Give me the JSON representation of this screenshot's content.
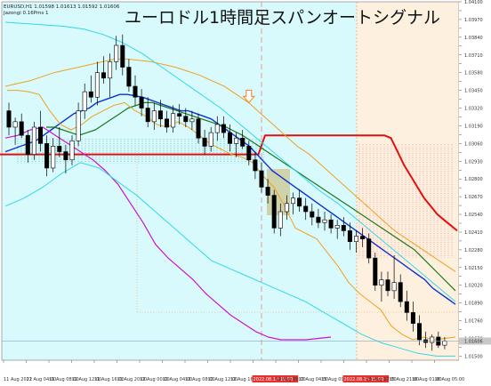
{
  "header": {
    "symbol_line": "EURUSD,H1 1.01598 1.01613 1.01592 1.01606",
    "indicator_line": "Jazongi 0.16Pms 1",
    "title": "ユーロドル1時間足スパンオートシグナル"
  },
  "price_label": "1.01606",
  "colors": {
    "panel_bg": "#d8fafc",
    "shade_bg": "#fdf0df",
    "current_price_line": "#8aa6c8",
    "red_line": "#e01010",
    "orange_band": "#f0a020",
    "cyan_band": "#30d8e8",
    "blue_line": "#1030d0",
    "green_line": "#1a7a1a",
    "magenta_line": "#d010d0",
    "purple_line": "#8020b0",
    "tan_box": "#c9b36a",
    "highlight_tick": "#e53030"
  },
  "chart_data": {
    "type": "candlestick",
    "title": "ユーロドル1時間足スパンオートシグナル",
    "ylim": [
      1.0147,
      1.041
    ],
    "y_ticks": [
      1.041,
      1.04035,
      1.0397,
      1.03905,
      1.0384,
      1.03775,
      1.0371,
      1.03645,
      1.0358,
      1.03515,
      1.0345,
      1.03385,
      1.0332,
      1.03255,
      1.0319,
      1.03125,
      1.0306,
      1.02995,
      1.0293,
      1.02865,
      1.028,
      1.02735,
      1.0267,
      1.02605,
      1.0254,
      1.02475,
      1.0241,
      1.02345,
      1.0228,
      1.02215,
      1.0215,
      1.02085,
      1.0202,
      1.01955,
      1.0189,
      1.01825,
      1.0176,
      1.01695,
      1.0163,
      1.01565,
      1.015
    ],
    "y_tick_labels": [
      "1.04100",
      "1.03970",
      "1.03840",
      "1.03710",
      "1.03580",
      "1.03450",
      "1.03320",
      "1.03190",
      "1.03060",
      "1.02930",
      "1.02800",
      "1.02670",
      "1.02540",
      "1.02410",
      "1.02280",
      "1.02150",
      "1.02020",
      "1.01890",
      "1.01760",
      "1.01630",
      "1.01500"
    ],
    "x_tick_labels": [
      "11 Aug 2022",
      "11 Aug 04:00",
      "11 Aug 08:00",
      "11 Aug 12:00",
      "11 Aug 16:00",
      "11 Aug 20:00",
      "12 Aug 00:00",
      "12 Aug 04:00",
      "12 Aug 08:00",
      "12 Aug 12:00",
      "12 Aug 16:00",
      "2022.08.12 19:00",
      "13 Aug 00:00",
      "13 Aug 04:00",
      "15 Aug 09:00",
      "2022.08.15 15:00",
      "15 Aug 17:00",
      "15 Aug 21:00",
      "16 Aug 01:00",
      "16 Aug 05:00"
    ],
    "x_tick_highlight": [
      false,
      false,
      false,
      false,
      false,
      false,
      false,
      false,
      false,
      false,
      false,
      true,
      false,
      false,
      false,
      true,
      false,
      false,
      false,
      false
    ],
    "candles": [
      [
        1.033,
        1.0336,
        1.0312,
        1.0318
      ],
      [
        1.0318,
        1.0325,
        1.0305,
        1.0322
      ],
      [
        1.0322,
        1.0328,
        1.031,
        1.0312
      ],
      [
        1.0312,
        1.0316,
        1.0292,
        1.0298
      ],
      [
        1.0298,
        1.0322,
        1.0294,
        1.0318
      ],
      [
        1.0318,
        1.033,
        1.03,
        1.0306
      ],
      [
        1.0306,
        1.0312,
        1.0282,
        1.0288
      ],
      [
        1.0288,
        1.031,
        1.0285,
        1.0304
      ],
      [
        1.0304,
        1.0318,
        1.0296,
        1.03
      ],
      [
        1.03,
        1.0305,
        1.0284,
        1.0294
      ],
      [
        1.0294,
        1.0312,
        1.029,
        1.0308
      ],
      [
        1.0308,
        1.0336,
        1.0304,
        1.033
      ],
      [
        1.033,
        1.035,
        1.0324,
        1.0344
      ],
      [
        1.0344,
        1.0356,
        1.0336,
        1.034
      ],
      [
        1.034,
        1.0366,
        1.0334,
        1.0358
      ],
      [
        1.0358,
        1.037,
        1.035,
        1.0354
      ],
      [
        1.0354,
        1.0372,
        1.034,
        1.0366
      ],
      [
        1.0366,
        1.0385,
        1.036,
        1.0378
      ],
      [
        1.0378,
        1.0386,
        1.0356,
        1.0362
      ],
      [
        1.0362,
        1.0368,
        1.0344,
        1.0348
      ],
      [
        1.0348,
        1.0356,
        1.0334,
        1.034
      ],
      [
        1.034,
        1.0346,
        1.0326,
        1.0332
      ],
      [
        1.0332,
        1.034,
        1.0318,
        1.0322
      ],
      [
        1.0322,
        1.0336,
        1.0316,
        1.033
      ],
      [
        1.033,
        1.0338,
        1.0318,
        1.0324
      ],
      [
        1.0324,
        1.033,
        1.0314,
        1.0318
      ],
      [
        1.0318,
        1.0334,
        1.0314,
        1.0328
      ],
      [
        1.0328,
        1.0335,
        1.032,
        1.0326
      ],
      [
        1.0326,
        1.0332,
        1.0318,
        1.0322
      ],
      [
        1.0322,
        1.033,
        1.0316,
        1.0324
      ],
      [
        1.0324,
        1.0328,
        1.0306,
        1.031
      ],
      [
        1.031,
        1.0316,
        1.0298,
        1.0304
      ],
      [
        1.0304,
        1.0318,
        1.03,
        1.0314
      ],
      [
        1.0314,
        1.0326,
        1.0308,
        1.032
      ],
      [
        1.032,
        1.0326,
        1.031,
        1.0314
      ],
      [
        1.0314,
        1.032,
        1.03,
        1.0306
      ],
      [
        1.0306,
        1.0314,
        1.0296,
        1.031
      ],
      [
        1.031,
        1.0316,
        1.0302,
        1.0304
      ],
      [
        1.0304,
        1.0308,
        1.029,
        1.0294
      ],
      [
        1.0294,
        1.03,
        1.028,
        1.0286
      ],
      [
        1.0286,
        1.0292,
        1.027,
        1.0274
      ],
      [
        1.0274,
        1.028,
        1.0262,
        1.0268
      ],
      [
        1.0268,
        1.0272,
        1.024,
        1.0244
      ],
      [
        1.0244,
        1.0262,
        1.0238,
        1.0256
      ],
      [
        1.0256,
        1.0268,
        1.025,
        1.0262
      ],
      [
        1.0262,
        1.027,
        1.0254,
        1.0266
      ],
      [
        1.0266,
        1.0272,
        1.0256,
        1.026
      ],
      [
        1.026,
        1.0266,
        1.025,
        1.0256
      ],
      [
        1.0256,
        1.0262,
        1.0246,
        1.0252
      ],
      [
        1.0252,
        1.0258,
        1.0244,
        1.0248
      ],
      [
        1.0248,
        1.0256,
        1.0242,
        1.025
      ],
      [
        1.025,
        1.0254,
        1.024,
        1.0244
      ],
      [
        1.0244,
        1.025,
        1.0236,
        1.0246
      ],
      [
        1.0246,
        1.0252,
        1.0238,
        1.0242
      ],
      [
        1.0242,
        1.0248,
        1.0228,
        1.0234
      ],
      [
        1.0234,
        1.0242,
        1.0226,
        1.0238
      ],
      [
        1.0238,
        1.0244,
        1.023,
        1.0236
      ],
      [
        1.0236,
        1.024,
        1.0218,
        1.0222
      ],
      [
        1.0222,
        1.0226,
        1.0198,
        1.0202
      ],
      [
        1.0202,
        1.0212,
        1.019,
        1.0206
      ],
      [
        1.0206,
        1.0212,
        1.0194,
        1.0198
      ],
      [
        1.0198,
        1.0224,
        1.0192,
        1.0204
      ],
      [
        1.0204,
        1.021,
        1.0186,
        1.019
      ],
      [
        1.019,
        1.0198,
        1.0176,
        1.0182
      ],
      [
        1.0182,
        1.019,
        1.0168,
        1.0174
      ],
      [
        1.0174,
        1.018,
        1.0158,
        1.0162
      ],
      [
        1.0162,
        1.0168,
        1.0156,
        1.016
      ],
      [
        1.016,
        1.0166,
        1.0154,
        1.0164
      ],
      [
        1.0164,
        1.0168,
        1.0156,
        1.0158
      ],
      [
        1.0158,
        1.0164,
        1.0155,
        1.0161
      ]
    ],
    "series": [
      {
        "values": [
          1.0298,
          1.0298,
          1.0298,
          1.0298,
          1.0298,
          1.0298,
          1.0298,
          1.0298,
          1.0298,
          1.0298,
          1.0298,
          1.0298,
          1.0298,
          1.0298,
          1.0298,
          1.0298,
          1.0298,
          1.0298,
          1.0298,
          1.0298,
          1.0298,
          1.0298,
          1.0298,
          1.0298,
          1.0298,
          1.0298,
          1.0298,
          1.0298,
          1.0298,
          1.0298,
          1.0298,
          1.0298,
          1.0298,
          1.0298,
          1.0298,
          1.0298,
          1.0298,
          1.0298,
          1.0298,
          1.0298,
          1.0312,
          1.0312,
          1.0312,
          1.0312,
          1.0312,
          1.0312,
          1.0312,
          1.0312,
          1.0312,
          1.0312,
          1.0312,
          1.0312,
          1.0312,
          1.0312,
          1.0312,
          1.0312,
          1.0312,
          1.0312,
          1.0312,
          1.031,
          1.03,
          1.029,
          1.0282,
          1.0274,
          1.0266,
          1.026,
          1.0254,
          1.025,
          1.0246,
          1.0242
        ]
      },
      {
        "values": [
          1.03,
          1.0302,
          1.0304,
          1.0306,
          1.0308,
          1.0312,
          1.0316,
          1.032,
          1.0324,
          1.0328,
          1.033,
          1.0332,
          1.0336,
          1.0338,
          1.034,
          1.0342,
          1.0342,
          1.0341,
          1.034,
          1.0338,
          1.0336,
          1.0334,
          1.0332,
          1.033,
          1.033,
          1.0328,
          1.0326,
          1.0324,
          1.032,
          1.0316,
          1.0312,
          1.0308,
          1.0304,
          1.0298,
          1.0292,
          1.0286,
          1.0282,
          1.0278,
          1.0274,
          1.027,
          1.0266,
          1.0262,
          1.0258,
          1.0254,
          1.025,
          1.0246,
          1.0242,
          1.0238,
          1.0234,
          1.023,
          1.0226,
          1.0222,
          1.0218,
          1.0214,
          1.021,
          1.0206,
          1.02,
          1.0196,
          1.0192,
          1.0188
        ]
      },
      {
        "values": [
          1.0318,
          1.0318,
          1.0316,
          1.0314,
          1.0312,
          1.0314,
          1.0316,
          1.032,
          1.0324,
          1.0328,
          1.0332,
          1.0334,
          1.0336,
          1.0336,
          1.0334,
          1.0332,
          1.033,
          1.0328,
          1.0326,
          1.0324,
          1.0322,
          1.032,
          1.0318,
          1.0315,
          1.0312,
          1.0308,
          1.0304,
          1.03,
          1.0296,
          1.0292,
          1.0288,
          1.0284,
          1.028,
          1.0276,
          1.0272,
          1.0268,
          1.0264,
          1.026,
          1.0256,
          1.0252,
          1.0248,
          1.0244,
          1.024,
          1.0236,
          1.0232,
          1.0228,
          1.0222,
          1.0216,
          1.021,
          1.0204,
          1.0198
        ]
      },
      {
        "values": [
          1.0345,
          1.0345,
          1.0344,
          1.0342,
          1.033,
          1.032,
          1.0316,
          1.032,
          1.0326,
          1.033,
          1.0334,
          1.0336,
          1.033,
          1.0326,
          1.032,
          1.0318,
          1.0322,
          1.0318,
          1.0312,
          1.0306,
          1.0302,
          1.0298,
          1.0296,
          1.0292,
          1.0282,
          1.0274,
          1.026,
          1.0244,
          1.024,
          1.0236,
          1.0226,
          1.0216,
          1.0204,
          1.0196,
          1.019,
          1.0184,
          1.0172,
          1.0166,
          1.0162,
          1.0164,
          1.0162,
          1.0163,
          1.0164
        ]
      },
      {
        "values": [
          1.031,
          1.0312,
          1.0316,
          1.0318,
          1.0312,
          1.0306,
          1.03,
          1.0294,
          1.0286,
          1.0276,
          1.0262,
          1.0248,
          1.0232,
          1.0222,
          1.0214,
          1.0206,
          1.0196,
          1.0188,
          1.018,
          1.0174,
          1.0168,
          1.0164,
          1.0162,
          1.0162,
          1.0162,
          1.0163,
          1.0164
        ]
      },
      {
        "values": [
          1.0348,
          1.035,
          1.0352,
          1.0355,
          1.0358,
          1.036,
          1.0362,
          1.0364,
          1.0366,
          1.0368,
          1.0368,
          1.0367,
          1.0366,
          1.0364,
          1.0362,
          1.0359,
          1.0356,
          1.0352,
          1.0348,
          1.0342,
          1.0336,
          1.0328,
          1.032,
          1.0312,
          1.0304,
          1.0298,
          1.029,
          1.0282,
          1.0274,
          1.0266,
          1.0258,
          1.025,
          1.0242,
          1.0236,
          1.023,
          1.0224,
          1.0218,
          1.0212
        ]
      },
      {
        "values": [
          1.0395,
          1.0394,
          1.0393,
          1.0392,
          1.039,
          1.0386,
          1.038,
          1.0372,
          1.0362,
          1.0352,
          1.0342,
          1.0332,
          1.032,
          1.0308,
          1.0296,
          1.0284,
          1.0272,
          1.0262,
          1.025,
          1.0238,
          1.0226,
          1.0214,
          1.0202,
          1.019
        ]
      },
      {
        "values": [
          1.026,
          1.0266,
          1.0274,
          1.0284,
          1.0292,
          1.0288,
          1.0278,
          1.0268,
          1.0256,
          1.0244,
          1.0232,
          1.022,
          1.0214,
          1.0208,
          1.0202,
          1.0196,
          1.019,
          1.0182,
          1.0174,
          1.0166,
          1.016,
          1.0156,
          1.0152,
          1.015,
          1.015
        ]
      }
    ],
    "marker": {
      "type": "arrow-down",
      "x_index": 38,
      "y": 1.0336
    }
  }
}
